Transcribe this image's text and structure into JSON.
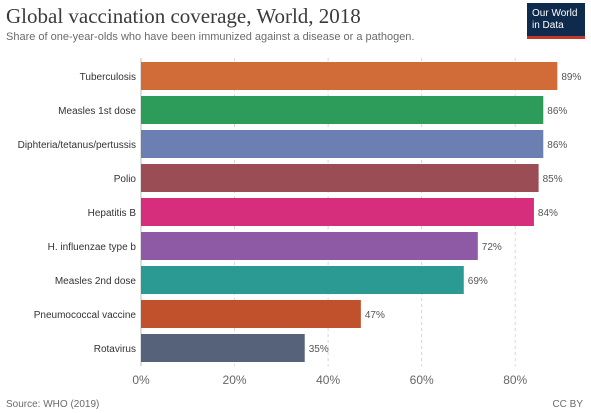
{
  "header": {
    "title": "Global vaccination coverage, World, 2018",
    "subtitle": "Share of one-year-olds who have been immunized against a disease or a pathogen.",
    "logo_line1": "Our World",
    "logo_line2": "in Data"
  },
  "footer": {
    "source": "Source: WHO (2019)",
    "license": "CC BY"
  },
  "chart_data": {
    "type": "bar",
    "orientation": "horizontal",
    "categories": [
      "Tuberculosis",
      "Measles 1st dose",
      "Diphteria/tetanus/pertussis",
      "Polio",
      "Hepatitis B",
      "H. influenzae type b",
      "Measles 2nd dose",
      "Pneumococcal vaccine",
      "Rotavirus"
    ],
    "values": [
      89,
      86,
      86,
      85,
      84,
      72,
      69,
      47,
      35
    ],
    "value_labels": [
      "89%",
      "86%",
      "86%",
      "85%",
      "84%",
      "72%",
      "69%",
      "47%",
      "35%"
    ],
    "colors": [
      "#d16c38",
      "#2d9b5a",
      "#6b7fb3",
      "#9b4d55",
      "#d62d7d",
      "#8e5aa6",
      "#2a9a92",
      "#c1502c",
      "#56627a"
    ],
    "xlim": [
      0,
      90
    ],
    "xticks": [
      0,
      20,
      40,
      60,
      80
    ],
    "xtick_labels": [
      "0%",
      "20%",
      "40%",
      "60%",
      "80%"
    ],
    "grid": "vertical-dashed",
    "legend": "none"
  }
}
